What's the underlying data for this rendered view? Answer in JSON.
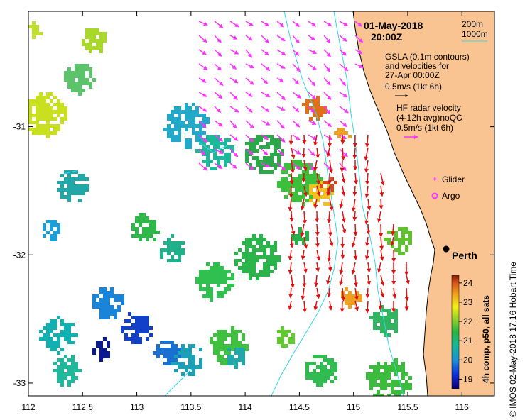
{
  "title": {
    "date": "01-May-2018",
    "time": "20:00Z"
  },
  "depth_legend": {
    "shallow": "200m",
    "deep": "1000m"
  },
  "gsla_legend": {
    "line1": "GSLA (0.1m contours)",
    "line2": "and velocities for",
    "line3": "27-Apr 00:00Z",
    "line4": "0.5m/s (1kt 6h)"
  },
  "hf_legend": {
    "line1": "HF radar velocity",
    "line2": "(4-12h avg)noQC",
    "line3": "0.5m/s (1kt 6h)"
  },
  "markers": {
    "glider": "Glider",
    "argo": "Argo"
  },
  "city": {
    "name": "Perth"
  },
  "colorbar": {
    "label": "4h comp, p50, all sats",
    "ticks": [
      "19",
      "20",
      "21",
      "22",
      "23",
      "24"
    ],
    "min": 18.5,
    "max": 24.4
  },
  "credit": "© IMOS 02-May-2018 17:16 Hobart Time",
  "axes": {
    "x_ticks": [
      "112",
      "112.5",
      "113",
      "113.5",
      "114",
      "114.5",
      "115",
      "115.5",
      "116"
    ],
    "x_values": [
      112,
      112.5,
      113,
      113.5,
      114,
      114.5,
      115,
      115.5,
      116
    ],
    "y_ticks": [
      "-31",
      "-32",
      "-33"
    ],
    "y_values": [
      -31,
      -32,
      -33
    ],
    "lon_range": [
      112,
      116.3
    ],
    "lat_range": [
      -30.1,
      -33.1
    ]
  },
  "colors": {
    "land": "#f9c491",
    "coast": "#000000",
    "bathy": "#2fd8e6",
    "gsla_arrow": "#ff33ff",
    "hf_arrow": "#e01010",
    "frame": "#000000"
  }
}
